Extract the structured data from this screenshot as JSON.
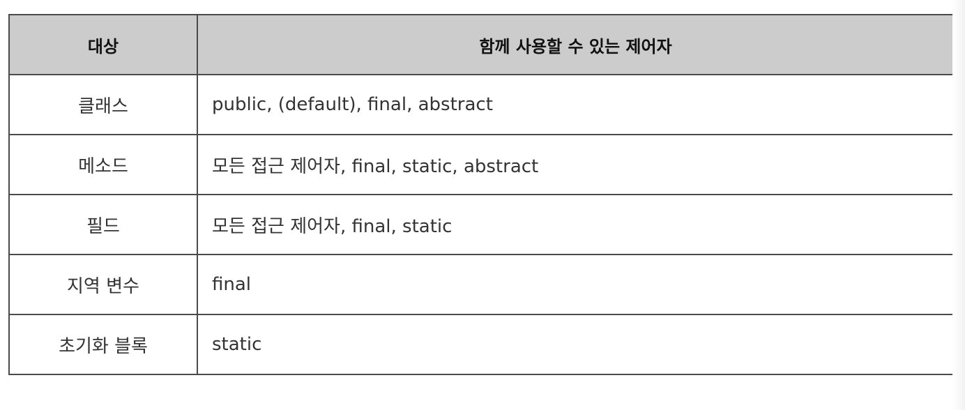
{
  "table": {
    "headers": [
      "대상",
      "함께 사용할 수 있는 제어자"
    ],
    "rows": [
      {
        "target": "클래스",
        "modifiers": "public, (default), final, abstract"
      },
      {
        "target": "메소드",
        "modifiers": "모든 접근 제어자, final, static, abstract"
      },
      {
        "target": "필드",
        "modifiers": "모든 접근 제어자, final, static"
      },
      {
        "target": "지역 변수",
        "modifiers": "final"
      },
      {
        "target": "초기화 블록",
        "modifiers": "static"
      }
    ]
  }
}
